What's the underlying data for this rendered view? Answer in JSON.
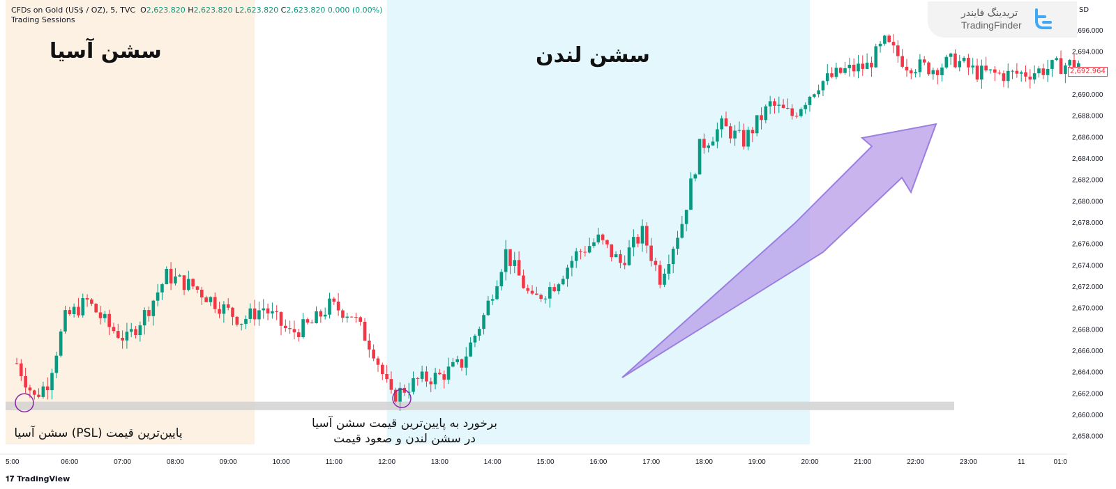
{
  "header": {
    "symbol": "CFDs on Gold (US$ / OZ), 5, TVC",
    "o_label": "O",
    "o_value": "2,623.820",
    "h_label": "H",
    "h_value": "2,623.820",
    "l_label": "L",
    "l_value": "2,623.820",
    "c_label": "C",
    "c_value": "2,623.820",
    "change": "0.000 (0.00%)",
    "indicator": "Trading Sessions"
  },
  "watermark": {
    "name_fa": "تریدینگ فایندر",
    "name_en": "TradingFinder"
  },
  "currency": "SD",
  "footer": {
    "brand": "TradingView"
  },
  "annotations": {
    "asia_title": "سشن آسیا",
    "london_title": "سشن لندن",
    "psl_note": "پایین‌ترین قیمت (PSL) سشن آسیا",
    "touch_note_line1": "برخورد به پایین‌ترین قیمت سشن آسیا",
    "touch_note_line2": "در سشن لندن و صعود قیمت"
  },
  "colors": {
    "up": "#089981",
    "down": "#f23645",
    "asia_session": "#fdf1e3",
    "london_session": "#e4f7fd",
    "psl_zone": "#cfcfcf",
    "arrow": "#b79be8",
    "marker": "#8e24aa"
  },
  "chart_data": {
    "type": "candlestick",
    "title": "",
    "xlabel": "",
    "ylabel": "",
    "x_ticks": [
      "5:00",
      "06:00",
      "07:00",
      "08:00",
      "09:00",
      "10:00",
      "11:00",
      "12:00",
      "13:00",
      "14:00",
      "15:00",
      "16:00",
      "17:00",
      "18:00",
      "19:00",
      "20:00",
      "21:00",
      "22:00",
      "23:00",
      "11",
      "01:0"
    ],
    "y_ticks": [
      "2,658.000",
      "2,660.000",
      "2,662.000",
      "2,664.000",
      "2,666.000",
      "2,668.000",
      "2,670.000",
      "2,672.000",
      "2,674.000",
      "2,676.000",
      "2,678.000",
      "2,680.000",
      "2,682.000",
      "2,684.000",
      "2,686.000",
      "2,688.000",
      "2,690.000",
      "2,692.000",
      "2,694.000",
      "2,696.000"
    ],
    "ylim": [
      2657.2,
      2697.5
    ],
    "last_price": "2,692.964",
    "sessions": [
      {
        "name": "سشن آسیا",
        "start": "05:00",
        "end": "09:30"
      },
      {
        "name": "سشن لندن",
        "start": "12:00",
        "end": "20:00"
      }
    ],
    "asia_session_low": 2661.2,
    "close_path": [
      [
        "05:00",
        2664.8
      ],
      [
        "05:20",
        2661.6
      ],
      [
        "05:35",
        2663.0
      ],
      [
        "05:55",
        2669.0
      ],
      [
        "06:20",
        2670.6
      ],
      [
        "06:45",
        2668.2
      ],
      [
        "07:05",
        2667.0
      ],
      [
        "07:30",
        2670.0
      ],
      [
        "07:50",
        2673.0
      ],
      [
        "08:20",
        2672.0
      ],
      [
        "08:45",
        2670.5
      ],
      [
        "09:15",
        2668.8
      ],
      [
        "09:40",
        2670.0
      ],
      [
        "10:10",
        2667.6
      ],
      [
        "10:35",
        2668.5
      ],
      [
        "10:55",
        2670.2
      ],
      [
        "11:20",
        2669.4
      ],
      [
        "11:45",
        2666.0
      ],
      [
        "12:05",
        2661.6
      ],
      [
        "12:35",
        2663.2
      ],
      [
        "13:00",
        2663.6
      ],
      [
        "13:25",
        2664.8
      ],
      [
        "13:50",
        2669.2
      ],
      [
        "14:15",
        2675.2
      ],
      [
        "14:45",
        2670.6
      ],
      [
        "15:10",
        2672.2
      ],
      [
        "15:35",
        2675.0
      ],
      [
        "16:00",
        2676.4
      ],
      [
        "16:25",
        2674.2
      ],
      [
        "16:50",
        2677.0
      ],
      [
        "17:10",
        2672.8
      ],
      [
        "17:35",
        2678.0
      ],
      [
        "17:55",
        2685.0
      ],
      [
        "18:20",
        2687.0
      ],
      [
        "18:45",
        2685.6
      ],
      [
        "19:15",
        2689.0
      ],
      [
        "19:40",
        2688.0
      ],
      [
        "20:10",
        2691.0
      ],
      [
        "20:40",
        2692.2
      ],
      [
        "21:05",
        2692.6
      ],
      [
        "21:25",
        2694.8
      ],
      [
        "21:50",
        2692.8
      ],
      [
        "22:20",
        2692.4
      ],
      [
        "22:45",
        2693.2
      ],
      [
        "23:10",
        2692.0
      ],
      [
        "23:40",
        2691.8
      ],
      [
        "00:10",
        2692.0
      ],
      [
        "00:40",
        2692.6
      ],
      [
        "01:05",
        2692.9
      ]
    ]
  }
}
